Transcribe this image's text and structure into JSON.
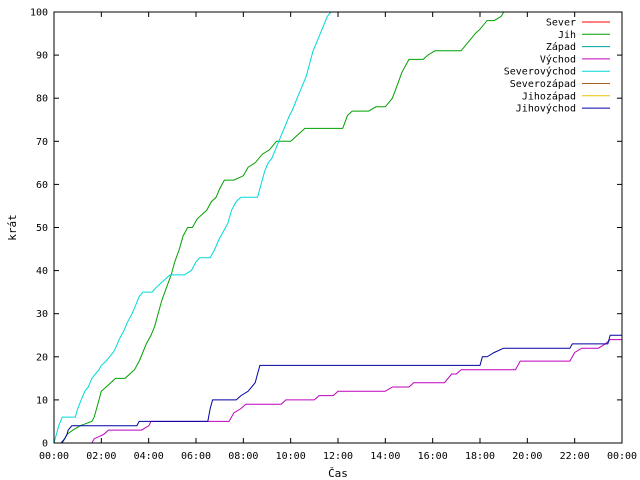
{
  "chart_data": {
    "type": "line",
    "xlabel": "Čas",
    "ylabel": "krát",
    "xlim": [
      0,
      24
    ],
    "ylim": [
      0,
      100
    ],
    "grid": false,
    "legend_position": "top-right",
    "x_ticks": [
      {
        "value": 0,
        "label": "00:00"
      },
      {
        "value": 2,
        "label": "02:00"
      },
      {
        "value": 4,
        "label": "04:00"
      },
      {
        "value": 6,
        "label": "06:00"
      },
      {
        "value": 8,
        "label": "08:00"
      },
      {
        "value": 10,
        "label": "10:00"
      },
      {
        "value": 12,
        "label": "12:00"
      },
      {
        "value": 14,
        "label": "14:00"
      },
      {
        "value": 16,
        "label": "16:00"
      },
      {
        "value": 18,
        "label": "18:00"
      },
      {
        "value": 20,
        "label": "20:00"
      },
      {
        "value": 22,
        "label": "22:00"
      },
      {
        "value": 24,
        "label": "00:00"
      }
    ],
    "y_ticks": [
      {
        "value": 0,
        "label": "0"
      },
      {
        "value": 10,
        "label": "10"
      },
      {
        "value": 20,
        "label": "20"
      },
      {
        "value": 30,
        "label": "30"
      },
      {
        "value": 40,
        "label": "40"
      },
      {
        "value": 50,
        "label": "50"
      },
      {
        "value": 60,
        "label": "60"
      },
      {
        "value": 70,
        "label": "70"
      },
      {
        "value": 80,
        "label": "80"
      },
      {
        "value": 90,
        "label": "90"
      },
      {
        "value": 100,
        "label": "100"
      }
    ],
    "series": [
      {
        "name": "Sever",
        "color": "#ff0000",
        "points": []
      },
      {
        "name": "Jih",
        "color": "#00a000",
        "points": [
          [
            0.35,
            0
          ],
          [
            0.45,
            1
          ],
          [
            0.55,
            2
          ],
          [
            0.8,
            3
          ],
          [
            1.1,
            4
          ],
          [
            1.6,
            5
          ],
          [
            1.7,
            6
          ],
          [
            1.8,
            8
          ],
          [
            1.9,
            10
          ],
          [
            2.0,
            12
          ],
          [
            2.2,
            13
          ],
          [
            2.4,
            14
          ],
          [
            2.6,
            15
          ],
          [
            3.0,
            15
          ],
          [
            3.2,
            16
          ],
          [
            3.4,
            17
          ],
          [
            3.6,
            19
          ],
          [
            3.75,
            21
          ],
          [
            3.9,
            23
          ],
          [
            4.1,
            25
          ],
          [
            4.25,
            27
          ],
          [
            4.4,
            30
          ],
          [
            4.55,
            33
          ],
          [
            4.75,
            36
          ],
          [
            4.95,
            39
          ],
          [
            5.1,
            42
          ],
          [
            5.3,
            45
          ],
          [
            5.45,
            48
          ],
          [
            5.65,
            50
          ],
          [
            5.85,
            50
          ],
          [
            6.05,
            52
          ],
          [
            6.25,
            53
          ],
          [
            6.45,
            54
          ],
          [
            6.65,
            56
          ],
          [
            6.85,
            57
          ],
          [
            7.0,
            59
          ],
          [
            7.2,
            61
          ],
          [
            7.6,
            61
          ],
          [
            8.0,
            62
          ],
          [
            8.2,
            64
          ],
          [
            8.5,
            65
          ],
          [
            8.8,
            67
          ],
          [
            9.1,
            68
          ],
          [
            9.4,
            70
          ],
          [
            10.0,
            70
          ],
          [
            10.2,
            71
          ],
          [
            10.4,
            72
          ],
          [
            10.6,
            73
          ],
          [
            11.0,
            73
          ],
          [
            12.2,
            73
          ],
          [
            12.4,
            76
          ],
          [
            12.6,
            77
          ],
          [
            13.3,
            77
          ],
          [
            13.6,
            78
          ],
          [
            14.0,
            78
          ],
          [
            14.3,
            80
          ],
          [
            14.5,
            83
          ],
          [
            14.7,
            86
          ],
          [
            14.9,
            88
          ],
          [
            15.0,
            89
          ],
          [
            15.6,
            89
          ],
          [
            15.8,
            90
          ],
          [
            16.1,
            91
          ],
          [
            17.2,
            91
          ],
          [
            17.5,
            93
          ],
          [
            17.8,
            95
          ],
          [
            18.0,
            96
          ],
          [
            18.3,
            98
          ],
          [
            18.6,
            98
          ],
          [
            18.9,
            99
          ],
          [
            19.0,
            100
          ]
        ]
      },
      {
        "name": "Západ",
        "color": "#00a0a0",
        "points": []
      },
      {
        "name": "Východ",
        "color": "#c000c0",
        "points": [
          [
            1.6,
            0
          ],
          [
            1.7,
            1
          ],
          [
            2.1,
            2
          ],
          [
            2.3,
            3
          ],
          [
            3.7,
            3
          ],
          [
            4.0,
            4
          ],
          [
            4.1,
            5
          ],
          [
            7.4,
            5
          ],
          [
            7.6,
            7
          ],
          [
            7.9,
            8
          ],
          [
            8.1,
            9
          ],
          [
            9.6,
            9
          ],
          [
            9.8,
            10
          ],
          [
            11.0,
            10
          ],
          [
            11.2,
            11
          ],
          [
            11.8,
            11
          ],
          [
            12.0,
            12
          ],
          [
            14.0,
            12
          ],
          [
            14.3,
            13
          ],
          [
            15.0,
            13
          ],
          [
            15.2,
            14
          ],
          [
            16.5,
            14
          ],
          [
            16.8,
            16
          ],
          [
            17.0,
            16
          ],
          [
            17.2,
            17
          ],
          [
            19.5,
            17
          ],
          [
            19.7,
            19
          ],
          [
            21.8,
            19
          ],
          [
            22.0,
            21
          ],
          [
            22.3,
            22
          ],
          [
            23.0,
            22
          ],
          [
            23.3,
            23
          ],
          [
            23.5,
            24
          ],
          [
            24.0,
            24
          ]
        ]
      },
      {
        "name": "Severovýchod",
        "color": "#00d8d8",
        "points": [
          [
            0.0,
            0
          ],
          [
            0.1,
            2
          ],
          [
            0.2,
            4
          ],
          [
            0.35,
            6
          ],
          [
            0.5,
            6
          ],
          [
            0.9,
            6
          ],
          [
            1.0,
            8
          ],
          [
            1.15,
            10
          ],
          [
            1.3,
            12
          ],
          [
            1.45,
            13
          ],
          [
            1.6,
            15
          ],
          [
            1.75,
            16
          ],
          [
            1.9,
            17
          ],
          [
            2.0,
            18
          ],
          [
            2.2,
            19
          ],
          [
            2.35,
            20
          ],
          [
            2.5,
            21
          ],
          [
            2.6,
            22
          ],
          [
            2.75,
            24
          ],
          [
            2.95,
            26
          ],
          [
            3.1,
            28
          ],
          [
            3.3,
            30
          ],
          [
            3.45,
            32
          ],
          [
            3.6,
            34
          ],
          [
            3.75,
            35
          ],
          [
            4.15,
            35
          ],
          [
            4.3,
            36
          ],
          [
            4.5,
            37
          ],
          [
            4.7,
            38
          ],
          [
            4.9,
            39
          ],
          [
            5.5,
            39
          ],
          [
            5.8,
            40
          ],
          [
            6.0,
            42
          ],
          [
            6.15,
            43
          ],
          [
            6.6,
            43
          ],
          [
            6.8,
            45
          ],
          [
            6.95,
            47
          ],
          [
            7.15,
            49
          ],
          [
            7.35,
            51
          ],
          [
            7.5,
            54
          ],
          [
            7.7,
            56
          ],
          [
            7.9,
            57
          ],
          [
            8.6,
            57
          ],
          [
            8.75,
            60
          ],
          [
            8.9,
            63
          ],
          [
            9.05,
            65
          ],
          [
            9.2,
            66
          ],
          [
            9.35,
            68
          ],
          [
            9.5,
            70
          ],
          [
            9.65,
            72
          ],
          [
            9.8,
            74
          ],
          [
            9.95,
            76
          ],
          [
            10.05,
            77
          ],
          [
            10.2,
            79
          ],
          [
            10.35,
            81
          ],
          [
            10.5,
            83
          ],
          [
            10.65,
            85
          ],
          [
            10.8,
            88
          ],
          [
            10.95,
            91
          ],
          [
            11.1,
            93
          ],
          [
            11.25,
            95
          ],
          [
            11.4,
            97
          ],
          [
            11.55,
            99
          ],
          [
            11.7,
            100
          ]
        ]
      },
      {
        "name": "Severozápad",
        "color": "#a06020",
        "points": []
      },
      {
        "name": "Jihozápad",
        "color": "#e8c000",
        "points": []
      },
      {
        "name": "Jihovýchod",
        "color": "#0000a0",
        "points": [
          [
            0.3,
            0
          ],
          [
            0.45,
            1
          ],
          [
            0.55,
            2
          ],
          [
            0.6,
            3
          ],
          [
            0.75,
            4
          ],
          [
            3.5,
            4
          ],
          [
            3.6,
            5
          ],
          [
            6.5,
            5
          ],
          [
            6.6,
            8
          ],
          [
            6.7,
            10
          ],
          [
            7.7,
            10
          ],
          [
            7.9,
            11
          ],
          [
            8.2,
            12
          ],
          [
            8.5,
            14
          ],
          [
            8.6,
            16
          ],
          [
            8.7,
            18
          ],
          [
            18.0,
            18
          ],
          [
            18.1,
            20
          ],
          [
            18.3,
            20
          ],
          [
            18.6,
            21
          ],
          [
            19.0,
            22
          ],
          [
            21.8,
            22
          ],
          [
            21.9,
            23
          ],
          [
            23.4,
            23
          ],
          [
            23.5,
            25
          ],
          [
            24.0,
            25
          ]
        ]
      }
    ]
  }
}
